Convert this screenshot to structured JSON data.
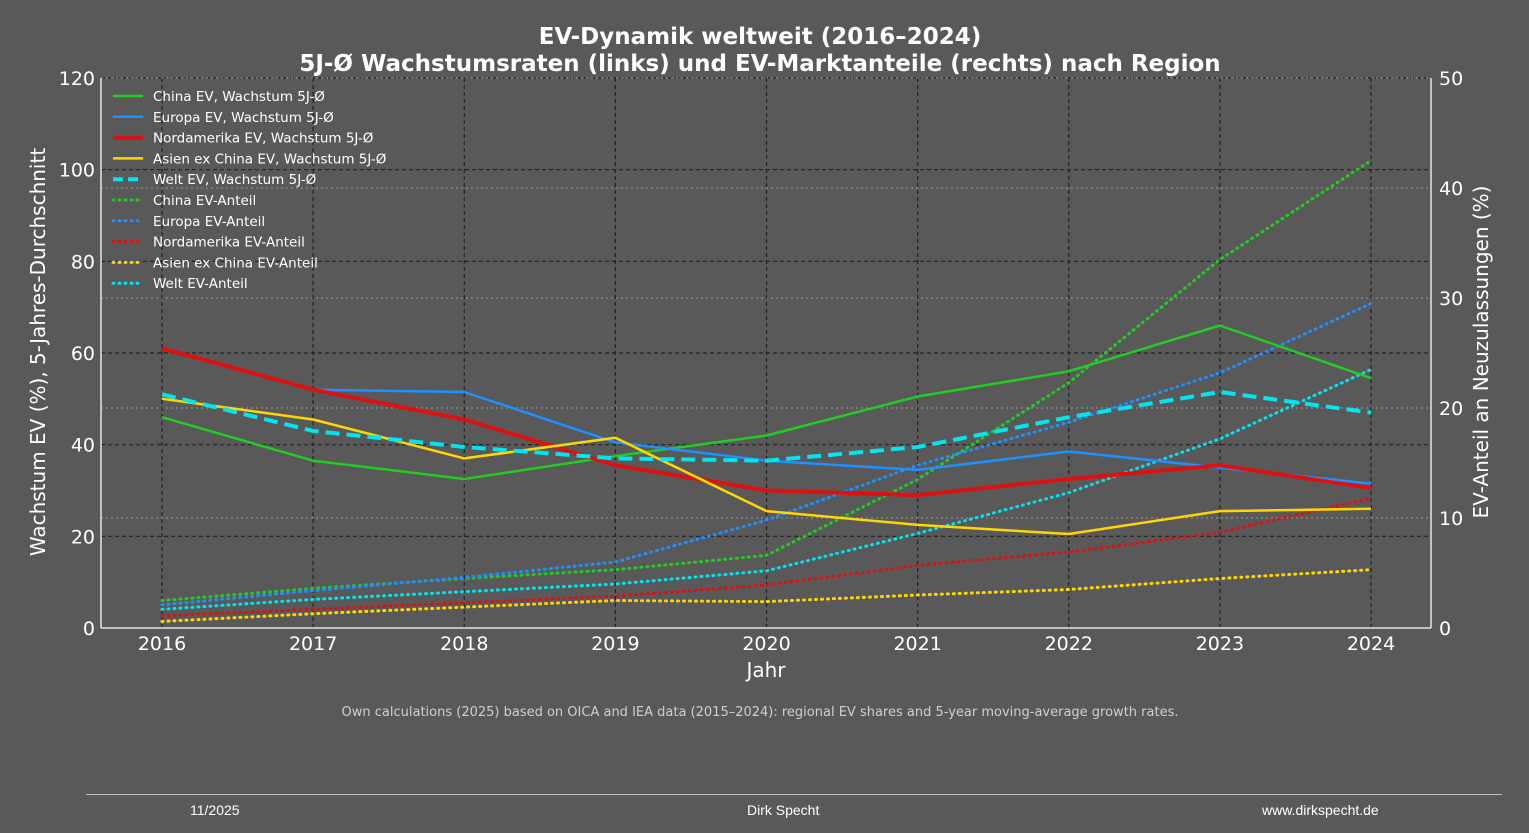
{
  "chart_data": {
    "type": "line",
    "title_line1": "EV-Dynamik weltweit (2016–2024)",
    "title_line2": "5J-Ø Wachstumsraten (links) und EV-Marktanteile (rechts) nach Region",
    "xlabel": "Jahr",
    "ylabel_left": "Wachstum EV (%), 5-Jahres-Durchschnitt",
    "ylabel_right": "EV-Anteil an Neuzulassungen (%)",
    "x": [
      2016,
      2017,
      2018,
      2019,
      2020,
      2021,
      2022,
      2023,
      2024
    ],
    "ylim_left": [
      0,
      120
    ],
    "ylim_right": [
      0,
      50
    ],
    "yticks_left": [
      0,
      20,
      40,
      60,
      80,
      100,
      120
    ],
    "yticks_right": [
      0,
      10,
      20,
      30,
      40,
      50
    ],
    "grid": true,
    "legend_position": "top-left",
    "growth_series": [
      {
        "name": "China EV, Wachstum 5J-Ø",
        "axis": "left",
        "color": "#22cc22",
        "style": "solid",
        "values": [
          46,
          36.5,
          32.5,
          37.5,
          42,
          50.5,
          56,
          66,
          54.5
        ]
      },
      {
        "name": "Europa EV, Wachstum 5J-Ø",
        "axis": "left",
        "color": "#1e90ff",
        "style": "solid",
        "values": [
          null,
          52,
          51.5,
          40.5,
          36.5,
          34.5,
          38.5,
          35,
          31.5
        ]
      },
      {
        "name": "Nordamerika EV, Wachstum 5J-Ø",
        "axis": "left",
        "color": "#dd1111",
        "style": "solid-thick",
        "values": [
          61,
          52,
          45.5,
          35.5,
          30,
          29,
          32.5,
          35.5,
          30.5
        ]
      },
      {
        "name": "Asien ex China EV, Wachstum 5J-Ø",
        "axis": "left",
        "color": "#ffd700",
        "style": "solid",
        "values": [
          50,
          45.5,
          37,
          41.5,
          25.5,
          22.5,
          20.5,
          25.5,
          26
        ]
      },
      {
        "name": "Welt EV, Wachstum 5J-Ø",
        "axis": "left",
        "color": "#00e5ee",
        "style": "dashed",
        "values": [
          51,
          43,
          39.5,
          37,
          36.5,
          39.5,
          46,
          51.5,
          47
        ]
      }
    ],
    "share_series": [
      {
        "name": "China EV-Anteil",
        "axis": "right",
        "color": "#22cc22",
        "style": "dotted",
        "values": [
          2.5,
          3.6,
          4.5,
          5.3,
          6.6,
          13.5,
          22.3,
          33.5,
          42.5
        ]
      },
      {
        "name": "Europa EV-Anteil",
        "axis": "right",
        "color": "#1e90ff",
        "style": "dotted",
        "values": [
          2.1,
          3.4,
          4.6,
          6.0,
          9.8,
          14.8,
          18.7,
          23.2,
          29.5
        ]
      },
      {
        "name": "Nordamerika EV-Anteil",
        "axis": "right",
        "color": "#dd1111",
        "style": "dotted",
        "values": [
          1.1,
          1.7,
          2.3,
          2.9,
          3.9,
          5.7,
          6.9,
          8.7,
          11.8
        ]
      },
      {
        "name": "Asien ex China EV-Anteil",
        "axis": "right",
        "color": "#ffd700",
        "style": "dotted",
        "values": [
          0.6,
          1.3,
          1.9,
          2.5,
          2.4,
          3.0,
          3.5,
          4.5,
          5.3
        ]
      },
      {
        "name": "Welt EV-Anteil",
        "axis": "right",
        "color": "#00e5ee",
        "style": "dotted",
        "values": [
          1.7,
          2.6,
          3.3,
          4.0,
          5.2,
          8.6,
          12.3,
          17.2,
          23.5
        ]
      }
    ],
    "caption": "Own calculations (2025) based on OICA and IEA data (2015–2024): regional EV shares and 5-year moving-average growth rates."
  },
  "footer": {
    "date": "11/2025",
    "author": "Dirk Specht",
    "website": "www.dirkspecht.de"
  },
  "colors": {
    "background": "#595959",
    "text": "#ffffff",
    "grid_major": "#222222",
    "grid_minor": "#999999"
  }
}
